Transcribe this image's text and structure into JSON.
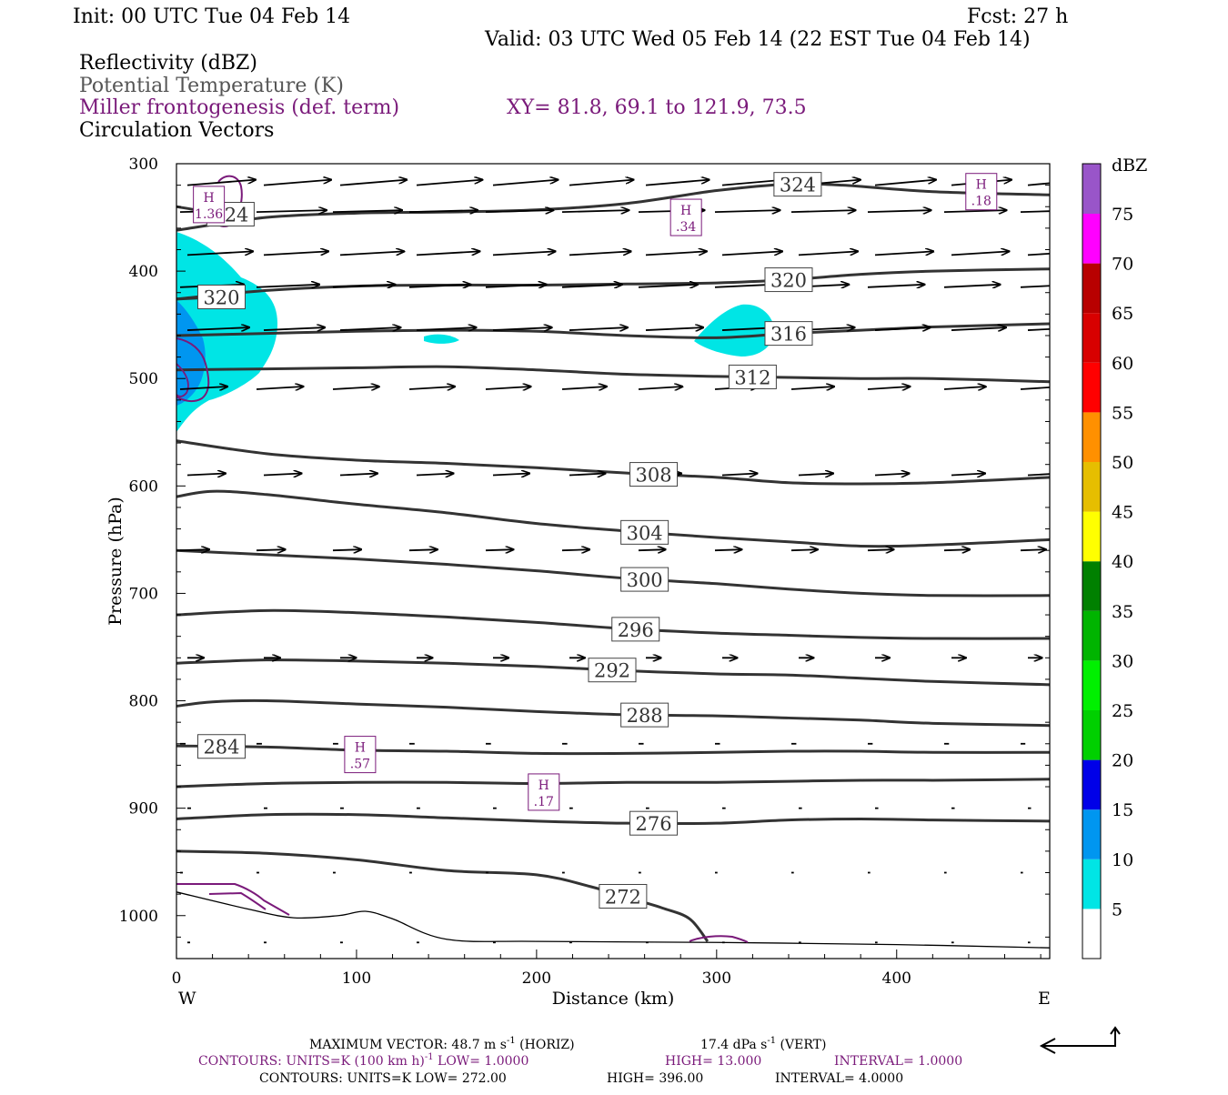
{
  "header": {
    "init": "Init: 00 UTC Tue 04 Feb 14",
    "fcst": "Fcst:   27 h",
    "valid": "Valid: 03 UTC Wed 05 Feb 14 (22 EST Tue 04 Feb 14)",
    "field1": "Reflectivity (dBZ)",
    "field2": "Potential Temperature (K)",
    "field3": "Miller frontogenesis (def. term)",
    "xy": "XY=  81.8, 69.1 to 121.9, 73.5",
    "field4": "Circulation Vectors"
  },
  "colorbar": {
    "unit": "dBZ",
    "levels": [
      "5",
      "10",
      "15",
      "20",
      "25",
      "30",
      "35",
      "40",
      "45",
      "50",
      "55",
      "60",
      "65",
      "70",
      "75"
    ],
    "colors": [
      "#00e5e5",
      "#0096f0",
      "#0000e8",
      "#00d000",
      "#00f000",
      "#00b400",
      "#008000",
      "#ffff00",
      "#e6be00",
      "#ff9000",
      "#ff0000",
      "#d80000",
      "#b80000",
      "#ff00ff",
      "#9955c9"
    ]
  },
  "footer": {
    "line1_a": "MAXIMUM VECTOR:  48.7 m s",
    "line1_b": " (HORIZ)",
    "line1_c": "17.4 dPa s",
    "line1_d": " (VERT)",
    "line2_a": "CONTOURS:  UNITS=K (100 km h)",
    "line2_b": "  LOW=   1.0000",
    "line2_c": "HIGH=   13.000",
    "line2_d": "INTERVAL=    1.0000",
    "line3_a": "CONTOURS:  UNITS=K  LOW=   272.00",
    "line3_b": "HIGH=   396.00",
    "line3_c": "INTERVAL=    4.0000"
  },
  "chart_data": {
    "type": "cross-section",
    "xlabel": "Distance (km)",
    "ylabel": "Pressure (hPa)",
    "x_ticks": [
      0,
      100,
      200,
      300,
      400
    ],
    "y_ticks": [
      300,
      400,
      500,
      600,
      700,
      800,
      900,
      1000
    ],
    "xlim": [
      0,
      485
    ],
    "ylim": [
      300,
      1040
    ],
    "y_inverted": true,
    "x_end_labels": {
      "left": "W",
      "right": "E"
    },
    "theta_contours": [
      {
        "label": "324",
        "label_x": 345,
        "points": [
          [
            0,
            362
          ],
          [
            50,
            350
          ],
          [
            100,
            346
          ],
          [
            150,
            345
          ],
          [
            200,
            343
          ],
          [
            250,
            337
          ],
          [
            300,
            325
          ],
          [
            340,
            319
          ],
          [
            370,
            320
          ],
          [
            420,
            326
          ],
          [
            485,
            329
          ]
        ]
      },
      {
        "label": "324",
        "label_x": 30,
        "points": [
          [
            0,
            340
          ],
          [
            15,
            344
          ],
          [
            30,
            347
          ]
        ]
      },
      {
        "label": "320",
        "label_x": 340,
        "points": [
          [
            0,
            426
          ],
          [
            50,
            418
          ],
          [
            100,
            414
          ],
          [
            150,
            413
          ],
          [
            200,
            413
          ],
          [
            250,
            412
          ],
          [
            300,
            411
          ],
          [
            340,
            408
          ],
          [
            380,
            403
          ],
          [
            420,
            400
          ],
          [
            485,
            398
          ]
        ]
      },
      {
        "label": "320",
        "label_x": 25,
        "points": [
          [
            0,
            426
          ],
          [
            25,
            424
          ]
        ]
      },
      {
        "label": "316",
        "label_x": 340,
        "points": [
          [
            0,
            460
          ],
          [
            50,
            458
          ],
          [
            100,
            456
          ],
          [
            150,
            455
          ],
          [
            200,
            456
          ],
          [
            250,
            460
          ],
          [
            300,
            462
          ],
          [
            340,
            458
          ],
          [
            380,
            455
          ],
          [
            420,
            452
          ],
          [
            485,
            449
          ]
        ]
      },
      {
        "label": "312",
        "label_x": 320,
        "points": [
          [
            0,
            492
          ],
          [
            50,
            491
          ],
          [
            100,
            490
          ],
          [
            150,
            489
          ],
          [
            200,
            492
          ],
          [
            250,
            496
          ],
          [
            300,
            498
          ],
          [
            340,
            499
          ],
          [
            380,
            500
          ],
          [
            420,
            500
          ],
          [
            485,
            503
          ]
        ]
      },
      {
        "label": "308",
        "label_x": 265,
        "points": [
          [
            0,
            558
          ],
          [
            50,
            570
          ],
          [
            100,
            576
          ],
          [
            150,
            579
          ],
          [
            200,
            583
          ],
          [
            250,
            588
          ],
          [
            300,
            592
          ],
          [
            340,
            597
          ],
          [
            380,
            598
          ],
          [
            420,
            597
          ],
          [
            485,
            592
          ]
        ]
      },
      {
        "label": "304",
        "label_x": 260,
        "points": [
          [
            0,
            610
          ],
          [
            20,
            605
          ],
          [
            50,
            608
          ],
          [
            100,
            617
          ],
          [
            150,
            625
          ],
          [
            200,
            635
          ],
          [
            250,
            642
          ],
          [
            300,
            648
          ],
          [
            340,
            652
          ],
          [
            380,
            656
          ],
          [
            420,
            655
          ],
          [
            485,
            650
          ]
        ]
      },
      {
        "label": "300",
        "label_x": 260,
        "points": [
          [
            0,
            660
          ],
          [
            50,
            664
          ],
          [
            100,
            668
          ],
          [
            150,
            673
          ],
          [
            200,
            679
          ],
          [
            250,
            686
          ],
          [
            300,
            691
          ],
          [
            340,
            696
          ],
          [
            380,
            700
          ],
          [
            420,
            702
          ],
          [
            485,
            702
          ]
        ]
      },
      {
        "label": "296",
        "label_x": 255,
        "points": [
          [
            0,
            720
          ],
          [
            50,
            716
          ],
          [
            100,
            718
          ],
          [
            150,
            722
          ],
          [
            200,
            727
          ],
          [
            250,
            733
          ],
          [
            300,
            737
          ],
          [
            340,
            739
          ],
          [
            380,
            741
          ],
          [
            420,
            742
          ],
          [
            485,
            742
          ]
        ]
      },
      {
        "label": "292",
        "label_x": 242,
        "points": [
          [
            0,
            765
          ],
          [
            50,
            762
          ],
          [
            100,
            763
          ],
          [
            150,
            765
          ],
          [
            200,
            768
          ],
          [
            250,
            772
          ],
          [
            300,
            775
          ],
          [
            340,
            776
          ],
          [
            380,
            779
          ],
          [
            420,
            782
          ],
          [
            485,
            785
          ]
        ]
      },
      {
        "label": "288",
        "label_x": 260,
        "points": [
          [
            0,
            805
          ],
          [
            20,
            801
          ],
          [
            50,
            800
          ],
          [
            100,
            803
          ],
          [
            150,
            806
          ],
          [
            200,
            810
          ],
          [
            250,
            813
          ],
          [
            300,
            814
          ],
          [
            340,
            816
          ],
          [
            380,
            818
          ],
          [
            420,
            821
          ],
          [
            485,
            823
          ]
        ]
      },
      {
        "label": "284",
        "label_x": 25,
        "points": [
          [
            0,
            842
          ],
          [
            50,
            843
          ],
          [
            100,
            846
          ],
          [
            150,
            847
          ],
          [
            200,
            849
          ],
          [
            250,
            849
          ],
          [
            300,
            848
          ],
          [
            340,
            847
          ],
          [
            380,
            847
          ],
          [
            420,
            848
          ],
          [
            485,
            848
          ]
        ]
      },
      {
        "label": "",
        "label_x": 0,
        "points": [
          [
            0,
            880
          ],
          [
            50,
            877
          ],
          [
            100,
            876
          ],
          [
            150,
            876
          ],
          [
            200,
            877
          ],
          [
            250,
            876
          ],
          [
            300,
            876
          ],
          [
            340,
            875
          ],
          [
            380,
            874
          ],
          [
            420,
            874
          ],
          [
            485,
            873
          ]
        ]
      },
      {
        "label": "276",
        "label_x": 265,
        "points": [
          [
            0,
            910
          ],
          [
            50,
            906
          ],
          [
            100,
            906
          ],
          [
            150,
            909
          ],
          [
            200,
            912
          ],
          [
            250,
            914
          ],
          [
            300,
            914
          ],
          [
            340,
            911
          ],
          [
            380,
            910
          ],
          [
            420,
            911
          ],
          [
            485,
            912
          ]
        ]
      },
      {
        "label": "272",
        "label_x": 248,
        "points": [
          [
            0,
            940
          ],
          [
            50,
            942
          ],
          [
            100,
            948
          ],
          [
            150,
            958
          ],
          [
            200,
            962
          ],
          [
            230,
            973
          ],
          [
            250,
            983
          ],
          [
            270,
            993
          ],
          [
            285,
            1003
          ],
          [
            295,
            1024
          ]
        ]
      }
    ],
    "terrain": [
      [
        0,
        978
      ],
      [
        40,
        994
      ],
      [
        65,
        1002
      ],
      [
        90,
        1000
      ],
      [
        105,
        996
      ],
      [
        120,
        1003
      ],
      [
        150,
        1022
      ],
      [
        200,
        1024
      ],
      [
        300,
        1025
      ],
      [
        400,
        1027
      ],
      [
        485,
        1030
      ]
    ],
    "frontogenesis_maxima": [
      {
        "label": "H",
        "value": "1.36",
        "x": 18,
        "p": 338
      },
      {
        "label": "H",
        "value": ".34",
        "x": 283,
        "p": 350
      },
      {
        "label": "H",
        "value": ".18",
        "x": 447,
        "p": 326
      },
      {
        "label": "H",
        "value": ".57",
        "x": 102,
        "p": 850
      },
      {
        "label": "H",
        "value": ".17",
        "x": 204,
        "p": 885
      }
    ],
    "reflectivity_units": "dBZ",
    "max_vector_horiz": "48.7 m s-1",
    "max_vector_vert": "17.4 dPa s-1"
  }
}
